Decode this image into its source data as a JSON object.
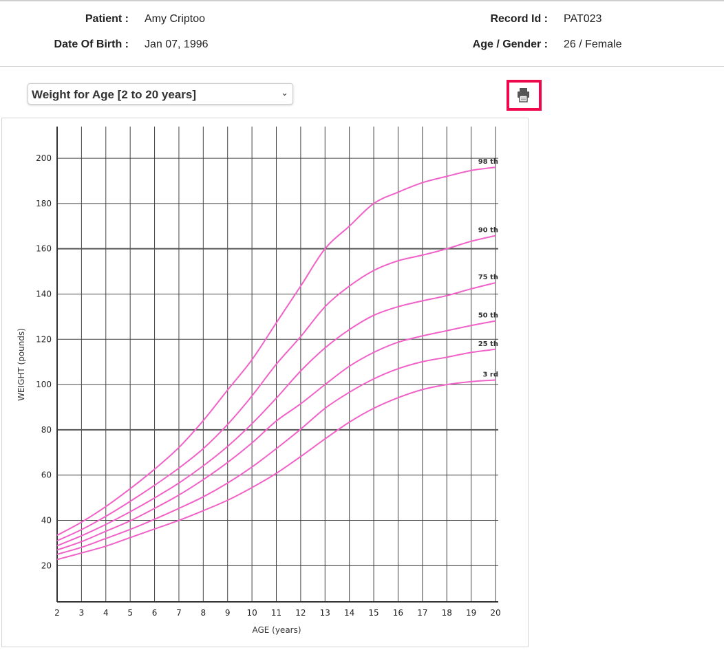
{
  "header": {
    "patient_label": "Patient :",
    "patient_value": "Amy Criptoo",
    "dob_label": "Date Of Birth :",
    "dob_value": "Jan 07, 1996",
    "record_label": "Record Id :",
    "record_value": "PAT023",
    "age_gender_label": "Age / Gender :",
    "age_gender_value": "26 / Female"
  },
  "controls": {
    "chart_select_value": "Weight for Age [2 to 20 years]",
    "print_icon": "printer-icon",
    "print_highlight_color": "#f0084c"
  },
  "chart_data": {
    "type": "line",
    "xlabel": "AGE (years)",
    "ylabel": "WEIGHT (pounds)",
    "xlim": [
      2,
      20
    ],
    "ylim": [
      4,
      214
    ],
    "xticks": [
      2,
      3,
      4,
      5,
      6,
      7,
      8,
      9,
      10,
      11,
      12,
      13,
      14,
      15,
      16,
      17,
      18,
      19,
      20
    ],
    "yticks": [
      20,
      40,
      60,
      80,
      100,
      120,
      140,
      160,
      180,
      200
    ],
    "grid": true,
    "line_color": "#f062c8",
    "x": [
      2,
      3,
      4,
      5,
      6,
      7,
      8,
      9,
      10,
      11,
      12,
      13,
      14,
      15,
      16,
      17,
      18,
      19,
      20
    ],
    "series": [
      {
        "name": "98 th",
        "values": [
          33.4,
          39.2,
          46.1,
          54,
          62.6,
          72.2,
          84.1,
          97.6,
          111,
          127.3,
          143.5,
          160,
          170,
          180,
          185,
          189.2,
          192,
          194.6,
          196
        ]
      },
      {
        "name": "90 th",
        "values": [
          31,
          35.9,
          41.8,
          48.4,
          55.5,
          63.1,
          71.7,
          82.4,
          95,
          109,
          121.2,
          134.4,
          143.5,
          150.4,
          154.7,
          157.2,
          160,
          163.3,
          165.8
        ]
      },
      {
        "name": "75 th",
        "values": [
          28.8,
          33.2,
          38.2,
          43.8,
          49.9,
          56.5,
          64.1,
          72.7,
          82.7,
          94,
          106,
          116.2,
          124.3,
          130.6,
          134.4,
          137,
          139.3,
          142.3,
          145
        ]
      },
      {
        "name": "50 th",
        "values": [
          26.9,
          30.6,
          35.2,
          39.8,
          45.3,
          51.2,
          58,
          65.6,
          74.2,
          83.9,
          91.5,
          100,
          108.1,
          114.2,
          118.7,
          121.5,
          123.8,
          126.1,
          128.1
        ]
      },
      {
        "name": "25 th",
        "values": [
          25,
          28.1,
          32,
          36,
          40.5,
          45.3,
          50.4,
          56.5,
          63.6,
          71.7,
          80.3,
          89.5,
          96.6,
          102.5,
          107,
          110.1,
          112.1,
          114.2,
          115.6
        ]
      },
      {
        "name": "3 rd",
        "values": [
          22.7,
          25.6,
          28.6,
          32.4,
          36.2,
          40,
          44.3,
          48.9,
          54.5,
          60.8,
          68.2,
          76,
          83.4,
          89.5,
          94.2,
          97.8,
          100,
          101.3,
          102
        ]
      }
    ]
  }
}
